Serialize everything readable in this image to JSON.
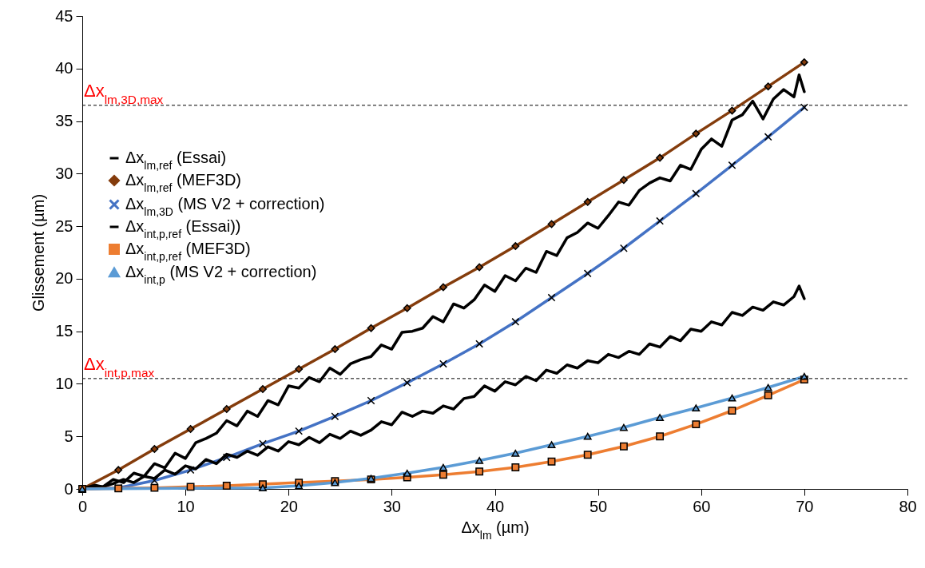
{
  "chart_data": {
    "type": "line",
    "xlabel": "Δx$_{lm}$ (µm)",
    "ylabel": "Glissement (µm)",
    "xlim": [
      0,
      80
    ],
    "xticks": [
      0,
      10,
      20,
      30,
      40,
      50,
      60,
      70,
      80
    ],
    "ylim": [
      0,
      45
    ],
    "yticks": [
      0,
      5,
      10,
      15,
      20,
      25,
      30,
      35,
      40,
      45
    ],
    "grid": false,
    "legend": "left",
    "line_style": "solid",
    "ref_lines": [
      {
        "axis": "y",
        "value": 36.5,
        "label": "Δx$_{lm,3D,max}$",
        "color": "#000000",
        "line_style": "dashed"
      },
      {
        "axis": "y",
        "value": 10.5,
        "label": "Δx$_{int,p,max}$",
        "color": "#000000",
        "line_style": "dashed"
      }
    ],
    "series": [
      {
        "name": "Δx$_{lm,ref}$ (Essai)",
        "color": "#000000",
        "marker": "none",
        "x": [
          0,
          1,
          2,
          3,
          4,
          5,
          6,
          7,
          8,
          9,
          10,
          11,
          12,
          13,
          14,
          15,
          16,
          17,
          18,
          19,
          20,
          21,
          22,
          23,
          24,
          25,
          26,
          27,
          28,
          29,
          30,
          31,
          32,
          33,
          34,
          35,
          36,
          37,
          38,
          39,
          40,
          41,
          42,
          43,
          44,
          45,
          46,
          47,
          48,
          49,
          50,
          51,
          52,
          53,
          54,
          55,
          56,
          57,
          58,
          59,
          60,
          61,
          62,
          63,
          64,
          65,
          66,
          67,
          68,
          69,
          69.5,
          70
        ],
        "values": [
          0,
          0.4,
          0.2,
          0.9,
          0.6,
          1.5,
          1.2,
          2.4,
          2.0,
          3.4,
          2.9,
          4.4,
          4.8,
          5.3,
          6.5,
          6.0,
          7.4,
          6.9,
          8.4,
          8.0,
          9.8,
          9.6,
          10.6,
          10.2,
          11.5,
          10.9,
          11.9,
          12.3,
          12.6,
          13.7,
          13.3,
          14.9,
          15.0,
          15.3,
          16.4,
          15.9,
          17.6,
          17.2,
          18.0,
          19.4,
          18.8,
          20.3,
          19.8,
          21.0,
          20.6,
          22.6,
          22.2,
          23.9,
          24.4,
          25.3,
          24.8,
          26.0,
          27.3,
          27.0,
          28.4,
          29.1,
          29.6,
          29.3,
          30.8,
          30.4,
          32.3,
          33.3,
          32.6,
          35.1,
          35.6,
          36.9,
          35.2,
          37.1,
          38.0,
          37.3,
          39.4,
          37.8
        ]
      },
      {
        "name": "Δx$_{lm,ref}$ (MEF3D)",
        "color": "#843c0c",
        "marker": "diamond",
        "x": [
          0,
          3.5,
          7,
          10.5,
          14,
          17.5,
          21,
          24.5,
          28,
          31.5,
          35,
          38.5,
          42,
          45.5,
          49,
          52.5,
          56,
          59.5,
          63,
          66.5,
          70
        ],
        "values": [
          0,
          1.8,
          3.8,
          5.7,
          7.6,
          9.5,
          11.4,
          13.3,
          15.3,
          17.2,
          19.2,
          21.1,
          23.1,
          25.2,
          27.3,
          29.4,
          31.5,
          33.8,
          36.0,
          38.3,
          40.6
        ]
      },
      {
        "name": "Δx$_{lm,3D}$ (MS V2 + correction)",
        "color": "#4472c4",
        "marker": "cross",
        "x": [
          0,
          3.5,
          7,
          10.5,
          14,
          17.5,
          21,
          24.5,
          28,
          31.5,
          35,
          38.5,
          42,
          45.5,
          49,
          52.5,
          56,
          59.5,
          63,
          66.5,
          70
        ],
        "values": [
          0,
          0.1,
          0.8,
          1.8,
          3.0,
          4.3,
          5.5,
          6.9,
          8.4,
          10.1,
          11.9,
          13.8,
          15.9,
          18.2,
          20.5,
          22.9,
          25.5,
          28.1,
          30.8,
          33.5,
          36.3
        ]
      },
      {
        "name": "Δx$_{int,p,ref}$ (Essai))",
        "color": "#000000",
        "marker": "none",
        "x": [
          0,
          1,
          2,
          3,
          4,
          5,
          6,
          7,
          8,
          9,
          10,
          11,
          12,
          13,
          14,
          15,
          16,
          17,
          18,
          19,
          20,
          21,
          22,
          23,
          24,
          25,
          26,
          27,
          28,
          29,
          30,
          31,
          32,
          33,
          34,
          35,
          36,
          37,
          38,
          39,
          40,
          41,
          42,
          43,
          44,
          45,
          46,
          47,
          48,
          49,
          50,
          51,
          52,
          53,
          54,
          55,
          56,
          57,
          58,
          59,
          60,
          61,
          62,
          63,
          64,
          65,
          66,
          67,
          68,
          69,
          69.5,
          70
        ],
        "values": [
          0,
          0.3,
          0.2,
          0.5,
          0.9,
          0.6,
          1.2,
          1.0,
          1.8,
          1.4,
          2.2,
          1.9,
          2.8,
          2.4,
          3.3,
          3.0,
          3.6,
          3.2,
          4.0,
          3.6,
          4.5,
          4.2,
          4.9,
          4.4,
          5.2,
          4.8,
          5.5,
          5.1,
          5.6,
          6.4,
          6.1,
          7.3,
          6.9,
          7.4,
          7.2,
          7.9,
          7.6,
          8.6,
          8.8,
          9.8,
          9.3,
          10.2,
          9.9,
          10.7,
          10.3,
          11.3,
          11.0,
          11.8,
          11.5,
          12.2,
          12.0,
          12.8,
          12.5,
          13.1,
          12.8,
          13.8,
          13.5,
          14.5,
          14.1,
          15.2,
          15.0,
          15.9,
          15.6,
          16.8,
          16.5,
          17.3,
          17.0,
          17.8,
          17.5,
          18.3,
          19.3,
          18.1
        ]
      },
      {
        "name": "Δx$_{int,p,ref}$ (MEF3D)",
        "color": "#ed7d31",
        "marker": "square",
        "x": [
          0,
          3.5,
          7,
          10.5,
          14,
          17.5,
          21,
          24.5,
          28,
          31.5,
          35,
          38.5,
          42,
          45.5,
          49,
          52.5,
          56,
          59.5,
          63,
          66.5,
          70
        ],
        "values": [
          0,
          0.05,
          0.1,
          0.2,
          0.3,
          0.45,
          0.6,
          0.75,
          0.9,
          1.1,
          1.35,
          1.65,
          2.05,
          2.6,
          3.25,
          4.05,
          5.0,
          6.15,
          7.45,
          8.9,
          10.4
        ]
      },
      {
        "name": "Δx$_{int,p}$ (MS V2 + correction)",
        "color": "#5b9bd5",
        "marker": "triangle",
        "x": [
          0,
          17.5,
          21,
          24.5,
          28,
          31.5,
          35,
          38.5,
          42,
          45.5,
          49,
          52.5,
          56,
          59.5,
          63,
          66.5,
          70
        ],
        "values": [
          0,
          0.1,
          0.3,
          0.6,
          1.0,
          1.5,
          2.05,
          2.7,
          3.4,
          4.2,
          5.0,
          5.85,
          6.8,
          7.7,
          8.65,
          9.65,
          10.7
        ]
      }
    ]
  }
}
